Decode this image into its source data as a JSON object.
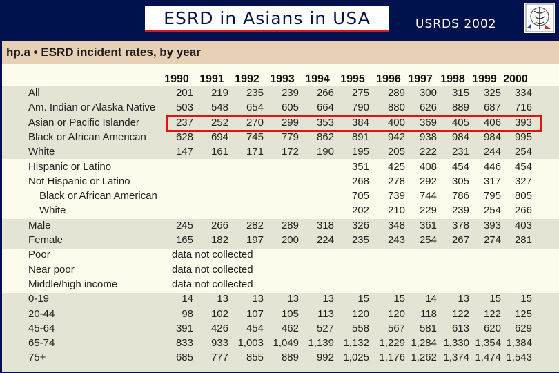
{
  "slide": {
    "title": "ESRD in Asians in USA",
    "source": "USRDS 2002",
    "logo_icon": "caduceus-emblem-icon"
  },
  "table": {
    "title": "hp.a • ESRD incident rates, by year",
    "years": [
      "1990",
      "1991",
      "1992",
      "1993",
      "1994",
      "1995",
      "1996",
      "1997",
      "1998",
      "1999",
      "2000"
    ],
    "rows": [
      {
        "label": "All",
        "values": [
          "201",
          "219",
          "235",
          "239",
          "266",
          "275",
          "289",
          "300",
          "315",
          "325",
          "334"
        ]
      },
      {
        "label": "Am. Indian or Alaska Native",
        "values": [
          "503",
          "548",
          "654",
          "605",
          "664",
          "790",
          "880",
          "626",
          "889",
          "687",
          "716"
        ]
      },
      {
        "label": "Asian or Pacific Islander",
        "values": [
          "237",
          "252",
          "270",
          "299",
          "353",
          "384",
          "400",
          "369",
          "405",
          "406",
          "393"
        ]
      },
      {
        "label": "Black or African American",
        "values": [
          "628",
          "694",
          "745",
          "779",
          "862",
          "891",
          "942",
          "938",
          "984",
          "984",
          "995"
        ]
      },
      {
        "label": "White",
        "values": [
          "147",
          "161",
          "171",
          "172",
          "190",
          "195",
          "205",
          "222",
          "231",
          "244",
          "254"
        ]
      },
      {
        "label": "Hispanic or Latino",
        "values": [
          "",
          "",
          "",
          "",
          "",
          "351",
          "425",
          "408",
          "454",
          "446",
          "454"
        ]
      },
      {
        "label": "Not Hispanic or Latino",
        "values": [
          "",
          "",
          "",
          "",
          "",
          "268",
          "278",
          "292",
          "305",
          "317",
          "327"
        ]
      },
      {
        "label": "Black or African American",
        "values": [
          "",
          "",
          "",
          "",
          "",
          "705",
          "739",
          "744",
          "786",
          "795",
          "805"
        ]
      },
      {
        "label": "White",
        "values": [
          "",
          "",
          "",
          "",
          "",
          "202",
          "210",
          "229",
          "239",
          "254",
          "266"
        ]
      },
      {
        "label": "Male",
        "values": [
          "245",
          "266",
          "282",
          "289",
          "318",
          "326",
          "348",
          "361",
          "378",
          "393",
          "403"
        ]
      },
      {
        "label": "Female",
        "values": [
          "165",
          "182",
          "197",
          "200",
          "224",
          "235",
          "243",
          "254",
          "267",
          "274",
          "281"
        ]
      },
      {
        "label": "Poor",
        "note": "data not collected"
      },
      {
        "label": "Near poor",
        "note": "data not collected"
      },
      {
        "label": "Middle/high income",
        "note": "data not collected"
      },
      {
        "label": "0-19",
        "values": [
          "14",
          "13",
          "13",
          "13",
          "13",
          "15",
          "15",
          "14",
          "13",
          "15",
          "15"
        ]
      },
      {
        "label": "20-44",
        "values": [
          "98",
          "102",
          "107",
          "105",
          "113",
          "120",
          "120",
          "118",
          "122",
          "122",
          "125"
        ]
      },
      {
        "label": "45-64",
        "values": [
          "391",
          "426",
          "454",
          "462",
          "527",
          "558",
          "567",
          "581",
          "613",
          "620",
          "629"
        ]
      },
      {
        "label": "65-74",
        "values": [
          "833",
          "933",
          "1,003",
          "1,049",
          "1,139",
          "1,132",
          "1,229",
          "1,284",
          "1,330",
          "1,354",
          "1,384"
        ]
      },
      {
        "label": "75+",
        "values": [
          "685",
          "777",
          "855",
          "889",
          "992",
          "1,025",
          "1,176",
          "1,262",
          "1,374",
          "1,474",
          "1,543"
        ]
      }
    ]
  }
}
